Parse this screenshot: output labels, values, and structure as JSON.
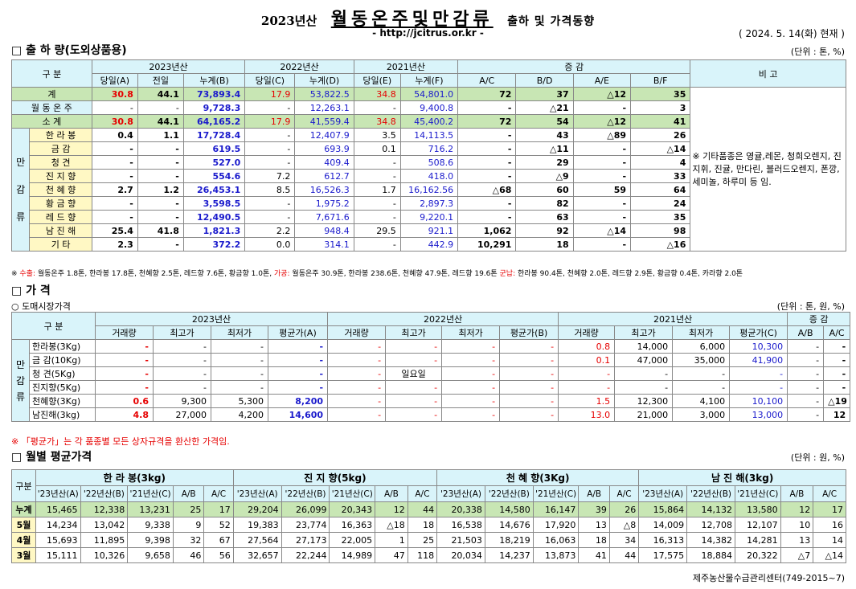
{
  "header": {
    "year": "2023년산",
    "title": "월동온주및만감류",
    "subtitle": "출하 및 가격동향",
    "url": "- http://jcitrus.or.kr -",
    "date": "( 2024.  5. 14(화) 현재 )"
  },
  "s1": {
    "title": "□ 출 하 량(도외상품용)",
    "unit": "(단위 : 톤, %)",
    "h_gubun": "구   분",
    "h_2023": "2023년산",
    "h_2022": "2022년산",
    "h_2021": "2021년산",
    "h_change": "증   감",
    "h_bigo": "비 고",
    "sub": [
      "당일(A)",
      "전일",
      "누계(B)",
      "당일(C)",
      "누계(D)",
      "당일(E)",
      "누계(F)",
      "A/C",
      "B/D",
      "A/E",
      "B/F"
    ],
    "cat": [
      "만",
      "감",
      "류"
    ],
    "rows": [
      [
        "계",
        "30.8",
        "44.1",
        "73,893.4",
        "17.9",
        "53,822.5",
        "34.8",
        "54,801.0",
        "72",
        "37",
        "△12",
        "35"
      ],
      [
        "월 동 온 주",
        "-",
        "-",
        "9,728.3",
        "-",
        "12,263.1",
        "-",
        "9,400.8",
        "-",
        "△21",
        "-",
        "3"
      ],
      [
        "소   계",
        "30.8",
        "44.1",
        "64,165.2",
        "17.9",
        "41,559.4",
        "34.8",
        "45,400.2",
        "72",
        "54",
        "△12",
        "41"
      ],
      [
        "한 라 봉",
        "0.4",
        "1.1",
        "17,728.4",
        "-",
        "12,407.9",
        "3.5",
        "14,113.5",
        "-",
        "43",
        "△89",
        "26"
      ],
      [
        "금   감",
        "-",
        "-",
        "619.5",
        "-",
        "693.9",
        "0.1",
        "716.2",
        "-",
        "△11",
        "-",
        "△14"
      ],
      [
        "청   견",
        "-",
        "-",
        "527.0",
        "-",
        "409.4",
        "-",
        "508.6",
        "-",
        "29",
        "-",
        "4"
      ],
      [
        "진 지 향",
        "-",
        "-",
        "554.6",
        "7.2",
        "612.7",
        "-",
        "418.0",
        "-",
        "△9",
        "-",
        "33"
      ],
      [
        "천 혜 향",
        "2.7",
        "1.2",
        "26,453.1",
        "8.5",
        "16,526.3",
        "1.7",
        "16,162.56",
        "△68",
        "60",
        "59",
        "64"
      ],
      [
        "황 금 향",
        "-",
        "-",
        "3,598.5",
        "-",
        "1,975.2",
        "-",
        "2,897.3",
        "-",
        "82",
        "-",
        "24"
      ],
      [
        "레 드 향",
        "-",
        "-",
        "12,490.5",
        "-",
        "7,671.6",
        "-",
        "9,220.1",
        "-",
        "63",
        "-",
        "35"
      ],
      [
        "남 진 해",
        "25.4",
        "41.8",
        "1,821.3",
        "2.2",
        "948.4",
        "29.5",
        "921.1",
        "1,062",
        "92",
        "△14",
        "98"
      ],
      [
        "기   타",
        "2.3",
        "-",
        "372.2",
        "0.0",
        "314.1",
        "-",
        "442.9",
        "10,291",
        "18",
        "-",
        "△16"
      ]
    ],
    "remark": "※ 기타품종은 영귤,레몬, 청희오렌지, 진지휘, 진귤, 만다린, 블러드오렌지, 폰깡,세미놀, 하루미 등 임.",
    "note_a": "※ ",
    "note_b": "수출:",
    "note_c": " 월동온주 1.8톤, 한라봉 17.8톤, 천혜향 2.5톤, 레드향 7.6톤, 황금향 1.0톤, ",
    "note_d": "가공:",
    "note_e": " 월동온주 30.9톤, 한라봉 238.6톤, 천혜향 47.9톤, 레드향 19.6톤 ",
    "note_f": "군납:",
    "note_g": " 한라봉 90.4톤, 천혜향 2.0톤, 레드향 2.9톤, 황금향 0.4톤, 카라향 2.0톤"
  },
  "s2": {
    "title": "□ 가     격",
    "sub": "○ 도매시장가격",
    "unit": "(단위 : 톤, 원, %)",
    "h_gubun": "구   분",
    "h_2023": "2023년산",
    "h_2022": "2022년산",
    "h_2021": "2021년산",
    "h_change": "증   감",
    "sub_h": [
      "거래량",
      "최고가",
      "최저가",
      "평균가(A)",
      "거래량",
      "최고가",
      "최저가",
      "평균가(B)",
      "거래량",
      "최고가",
      "최저가",
      "평균가(C)",
      "A/B",
      "A/C"
    ],
    "cat": [
      "만",
      "감",
      "류"
    ],
    "rows": [
      [
        "한라봉(3Kg)",
        "-",
        "-",
        "-",
        "-",
        "-",
        "-",
        "-",
        "-",
        "0.8",
        "14,000",
        "6,000",
        "10,300",
        "-",
        "-"
      ],
      [
        "금 감(10Kg)",
        "-",
        "-",
        "-",
        "-",
        "-",
        "-",
        "-",
        "-",
        "0.1",
        "47,000",
        "35,000",
        "41,900",
        "-",
        "-"
      ],
      [
        "청   견(5Kg)",
        "-",
        "-",
        "-",
        "-",
        "-",
        "일요일",
        "-",
        "-",
        "-",
        "-",
        "-",
        "-",
        "-",
        "-"
      ],
      [
        "진지향(5Kg)",
        "-",
        "-",
        "-",
        "-",
        "-",
        "-",
        "-",
        "-",
        "-",
        "-",
        "-",
        "-",
        "-",
        "-"
      ],
      [
        "천혜향(3Kg)",
        "0.6",
        "9,300",
        "5,300",
        "8,200",
        "-",
        "-",
        "-",
        "-",
        "1.5",
        "12,300",
        "4,100",
        "10,100",
        "-",
        "△19"
      ],
      [
        "남진해(3kg)",
        "4.8",
        "27,000",
        "4,200",
        "14,600",
        "-",
        "-",
        "-",
        "-",
        "13.0",
        "21,000",
        "3,000",
        "13,000",
        "-",
        "12"
      ]
    ],
    "note": "※ 「평균가」는 각 품종별 모든 상자규격을 환산한 가격임."
  },
  "s3": {
    "title": "□ 월별 평균가격",
    "unit": "(단위 : 원, %)",
    "h_gubun": "구분",
    "groups": [
      "한 라 봉(3kg)",
      "진 지 향(5kg)",
      "천 혜 향(3Kg)",
      "남 진 해(3kg)"
    ],
    "sub": [
      "'23년산(A)",
      "'22년산(B)",
      "'21년산(C)",
      "A/B",
      "A/C"
    ],
    "rows": [
      [
        "누계",
        "15,465",
        "12,338",
        "13,231",
        "25",
        "17",
        "29,204",
        "26,099",
        "20,343",
        "12",
        "44",
        "20,338",
        "14,580",
        "16,147",
        "39",
        "26",
        "15,864",
        "14,132",
        "13,580",
        "12",
        "17"
      ],
      [
        "5월",
        "14,234",
        "13,042",
        "9,338",
        "9",
        "52",
        "19,383",
        "23,774",
        "16,363",
        "△18",
        "18",
        "16,538",
        "14,676",
        "17,920",
        "13",
        "△8",
        "14,009",
        "12,708",
        "12,107",
        "10",
        "16"
      ],
      [
        "4월",
        "15,693",
        "11,895",
        "9,398",
        "32",
        "67",
        "27,564",
        "27,173",
        "22,005",
        "1",
        "25",
        "21,503",
        "18,219",
        "16,063",
        "18",
        "34",
        "16,313",
        "14,382",
        "14,281",
        "13",
        "14"
      ],
      [
        "3월",
        "15,111",
        "10,326",
        "9,658",
        "46",
        "56",
        "32,657",
        "22,244",
        "14,989",
        "47",
        "118",
        "20,034",
        "14,237",
        "13,873",
        "41",
        "44",
        "17,575",
        "18,884",
        "20,322",
        "△7",
        "△14"
      ]
    ]
  },
  "footer": "제주농산물수급관리센터(749-2015~7)",
  "colors": {
    "header_bg": "#d9f4fa",
    "sum_bg": "#c8e6b4",
    "yellow_bg": "#fff8c4",
    "red": "#e60000",
    "blue": "#1a1acc"
  }
}
